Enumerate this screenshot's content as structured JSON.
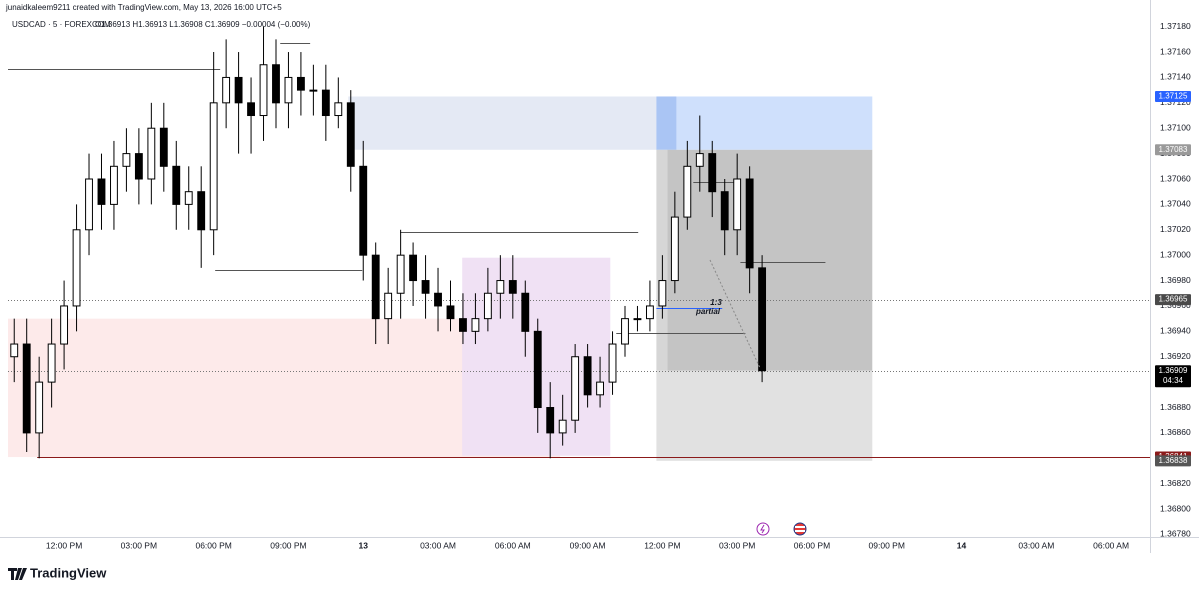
{
  "chart_data": {
    "type": "candlestick",
    "credit": "junaidkaleem9211 created with TradingView.com, May 13, 2026 16:00 UTC+5",
    "symbol": "USDCAD · 5 · FOREXCOM",
    "ohlc": "O1.36913 H1.36913 L1.36908 C1.36909 −0.00004 (−0.00%)",
    "footer": "TradingView",
    "annotations": [
      "1:3",
      "partial"
    ],
    "up_color": "#ffffff",
    "down_color": "#000000",
    "wick_color": "#000000",
    "grid": false,
    "xlim": [
      -2.25,
      43.56
    ],
    "ylim": [
      1.36778,
      1.37201
    ],
    "xticks": [
      {
        "value": 0,
        "label": "12:00 PM"
      },
      {
        "value": 3,
        "label": "03:00 PM"
      },
      {
        "value": 6,
        "label": "06:00 PM"
      },
      {
        "value": 9,
        "label": "09:00 PM"
      },
      {
        "value": 12,
        "label": "13"
      },
      {
        "value": 15,
        "label": "03:00 AM"
      },
      {
        "value": 18,
        "label": "06:00 AM"
      },
      {
        "value": 21,
        "label": "09:00 AM"
      },
      {
        "value": 24,
        "label": "12:00 PM"
      },
      {
        "value": 27,
        "label": "03:00 PM"
      },
      {
        "value": 30,
        "label": "06:00 PM"
      },
      {
        "value": 33,
        "label": "09:00 PM"
      },
      {
        "value": 36,
        "label": "14"
      },
      {
        "value": 39,
        "label": "03:00 AM"
      },
      {
        "value": 42,
        "label": "06:00 AM"
      }
    ],
    "yticks": [
      {
        "value": 1.3678,
        "label": "1.36780"
      },
      {
        "value": 1.368,
        "label": "1.36800"
      },
      {
        "value": 1.3682,
        "label": "1.36820"
      },
      {
        "value": 1.3684,
        "label": "1.36840"
      },
      {
        "value": 1.3686,
        "label": "1.36860"
      },
      {
        "value": 1.3688,
        "label": "1.36880"
      },
      {
        "value": 1.369,
        "label": "1.36900"
      },
      {
        "value": 1.3692,
        "label": "1.36920"
      },
      {
        "value": 1.3694,
        "label": "1.36940"
      },
      {
        "value": 1.3696,
        "label": "1.36960"
      },
      {
        "value": 1.3698,
        "label": "1.36980"
      },
      {
        "value": 1.37,
        "label": "1.37000"
      },
      {
        "value": 1.3702,
        "label": "1.37020"
      },
      {
        "value": 1.3704,
        "label": "1.37040"
      },
      {
        "value": 1.3706,
        "label": "1.37060"
      },
      {
        "value": 1.3708,
        "label": "1.37080"
      },
      {
        "value": 1.371,
        "label": "1.37100"
      },
      {
        "value": 1.3712,
        "label": "1.37120"
      },
      {
        "value": 1.3714,
        "label": "1.37140"
      },
      {
        "value": 1.3716,
        "label": "1.37160"
      },
      {
        "value": 1.3718,
        "label": "1.37180"
      }
    ],
    "zones": [
      {
        "xlim": [
          -2.25,
          19.9
        ],
        "ylim": [
          1.36841,
          1.3695
        ],
        "color": "#fdeaea"
      },
      {
        "xlim": [
          15.97,
          21.91
        ],
        "ylim": [
          1.36842,
          1.36998
        ],
        "color": "#f0e1f4"
      },
      {
        "xlim": [
          11.4,
          23.76
        ],
        "ylim": [
          1.37083,
          1.37125
        ],
        "color": "#e4e9f4"
      },
      {
        "xlim": [
          23.76,
          32.42
        ],
        "ylim": [
          1.37083,
          1.37125
        ],
        "color": "#cfe0fc"
      },
      {
        "xlim": [
          23.76,
          24.56
        ],
        "ylim": [
          1.37083,
          1.37125
        ],
        "color": "#aac5f4"
      },
      {
        "xlim": [
          23.76,
          32.42
        ],
        "ylim": [
          1.36838,
          1.36909
        ],
        "color": "#e1e1e1"
      },
      {
        "xlim": [
          23.76,
          24.2
        ],
        "ylim": [
          1.36909,
          1.37083
        ],
        "color": "#d6d6d6"
      },
      {
        "xlim": [
          24.2,
          32.42
        ],
        "ylim": [
          1.36909,
          1.37083
        ],
        "color": "#c4c4c4"
      }
    ],
    "lines": [
      {
        "x": [
          -2.25,
          6.26
        ],
        "y": 1.37147,
        "color": "#555555",
        "dash": false
      },
      {
        "x": [
          8.67,
          9.87
        ],
        "y": 1.37167,
        "color": "#555555",
        "dash": false
      },
      {
        "x": [
          6.06,
          11.96
        ],
        "y": 1.36988,
        "color": "#555555",
        "dash": false
      },
      {
        "x": [
          13.48,
          23.03
        ],
        "y": 1.37018,
        "color": "#555555",
        "dash": false
      },
      {
        "x": [
          22.15,
          27.33
        ],
        "y": 1.36939,
        "color": "#555555",
        "dash": false
      },
      {
        "x": [
          25.24,
          26.85
        ],
        "y": 1.37058,
        "color": "#555555",
        "dash": false
      },
      {
        "x": [
          27.13,
          30.54
        ],
        "y": 1.36995,
        "color": "#555555",
        "dash": false
      },
      {
        "x": [
          23.76,
          26.4
        ],
        "y": 1.36958,
        "color": "#2962ff",
        "dash": false
      },
      {
        "x": [
          -2.25,
          43.56
        ],
        "y": 1.36965,
        "color": "#777777",
        "dash": true
      },
      {
        "x": [
          -2.25,
          43.56
        ],
        "y": 1.36909,
        "color": "#777777",
        "dash": true
      },
      {
        "x": [
          -1.08,
          43.56
        ],
        "y": 1.36841,
        "color": "#8b1a1a",
        "dash": false
      }
    ],
    "price_tags": [
      {
        "value": 1.37125,
        "color": "#2962ff"
      },
      {
        "value": 1.37083,
        "color": "#9a9a9a"
      },
      {
        "value": 1.36965,
        "color": "#4a4a4a"
      },
      {
        "value": 1.36909,
        "color": "#000000",
        "countdown": "04:34"
      },
      {
        "value": 1.36841,
        "color": "#8b1a1a"
      },
      {
        "value": 1.36838,
        "color": "#555555"
      }
    ],
    "series": [
      {
        "name": "USDCAD",
        "x": [
          -2,
          -1.5,
          -1,
          -0.5,
          0,
          0.5,
          1,
          1.5,
          2,
          2.5,
          3,
          3.5,
          4,
          4.5,
          5,
          5.5,
          6,
          6.5,
          7,
          7.5,
          8,
          8.5,
          9,
          9.5,
          10,
          10.5,
          11,
          11.5,
          12,
          12.5,
          13,
          13.5,
          14,
          14.5,
          15,
          15.5,
          16,
          16.5,
          17,
          17.5,
          18,
          18.5,
          19,
          19.5,
          20,
          20.5,
          21,
          21.5,
          22,
          22.5,
          23,
          23.5,
          24,
          24.5,
          25,
          25.5,
          26,
          26.5,
          27,
          27.5,
          28
        ],
        "open": [
          1.3692,
          1.3693,
          1.3686,
          1.369,
          1.3693,
          1.3696,
          1.3702,
          1.3706,
          1.3704,
          1.3707,
          1.3708,
          1.3706,
          1.371,
          1.3707,
          1.3704,
          1.3705,
          1.3702,
          1.3712,
          1.3714,
          1.3712,
          1.3711,
          1.3715,
          1.3712,
          1.3714,
          1.3713,
          1.3713,
          1.3711,
          1.3712,
          1.3707,
          1.37,
          1.3695,
          1.3697,
          1.37,
          1.3698,
          1.3697,
          1.3696,
          1.3695,
          1.3694,
          1.3695,
          1.3697,
          1.3698,
          1.3697,
          1.3694,
          1.3688,
          1.3686,
          1.3687,
          1.3692,
          1.3689,
          1.369,
          1.3693,
          1.3695,
          1.3695,
          1.3696,
          1.3698,
          1.3703,
          1.3707,
          1.3708,
          1.3705,
          1.3702,
          1.3706,
          1.3699
        ],
        "high": [
          1.3695,
          1.3695,
          1.3692,
          1.3695,
          1.3698,
          1.3704,
          1.3708,
          1.3708,
          1.3709,
          1.371,
          1.371,
          1.3712,
          1.3712,
          1.3709,
          1.3707,
          1.3707,
          1.3716,
          1.3717,
          1.3716,
          1.3714,
          1.3718,
          1.3717,
          1.3716,
          1.3716,
          1.3715,
          1.3715,
          1.3714,
          1.3713,
          1.3709,
          1.3701,
          1.3699,
          1.3702,
          1.3701,
          1.37,
          1.3699,
          1.3698,
          1.3697,
          1.3697,
          1.3699,
          1.37,
          1.37,
          1.3698,
          1.3695,
          1.369,
          1.3689,
          1.3693,
          1.3693,
          1.3692,
          1.3694,
          1.3696,
          1.3696,
          1.3698,
          1.37,
          1.3705,
          1.3709,
          1.3711,
          1.3709,
          1.3706,
          1.3708,
          1.3707,
          1.37
        ],
        "low": [
          1.369,
          1.36845,
          1.3684,
          1.3688,
          1.3691,
          1.3694,
          1.37,
          1.3702,
          1.3702,
          1.3705,
          1.3704,
          1.3704,
          1.3705,
          1.3702,
          1.3702,
          1.3699,
          1.37,
          1.371,
          1.3708,
          1.3708,
          1.3709,
          1.371,
          1.371,
          1.3711,
          1.3711,
          1.3709,
          1.371,
          1.3705,
          1.3698,
          1.3693,
          1.3693,
          1.3695,
          1.3696,
          1.3695,
          1.3694,
          1.3694,
          1.3693,
          1.3693,
          1.3694,
          1.3695,
          1.3695,
          1.3692,
          1.3686,
          1.3684,
          1.3685,
          1.3686,
          1.3688,
          1.3688,
          1.3689,
          1.3692,
          1.3694,
          1.3694,
          1.3695,
          1.3697,
          1.3702,
          1.3705,
          1.3703,
          1.37,
          1.37,
          1.3697,
          1.369
        ],
        "close": [
          1.3693,
          1.3686,
          1.369,
          1.3693,
          1.3696,
          1.3702,
          1.3706,
          1.3704,
          1.3707,
          1.3708,
          1.3706,
          1.371,
          1.3707,
          1.3704,
          1.3705,
          1.3702,
          1.3712,
          1.3714,
          1.3712,
          1.3711,
          1.3715,
          1.3712,
          1.3714,
          1.3713,
          1.3713,
          1.3711,
          1.3712,
          1.3707,
          1.37,
          1.3695,
          1.3697,
          1.37,
          1.3698,
          1.3697,
          1.3696,
          1.3695,
          1.3694,
          1.3695,
          1.3697,
          1.3698,
          1.3697,
          1.3694,
          1.3688,
          1.3686,
          1.3687,
          1.3692,
          1.3689,
          1.369,
          1.3693,
          1.3695,
          1.3695,
          1.3696,
          1.3698,
          1.3703,
          1.3707,
          1.3708,
          1.3705,
          1.3702,
          1.3706,
          1.3699,
          1.36909
        ]
      }
    ]
  }
}
